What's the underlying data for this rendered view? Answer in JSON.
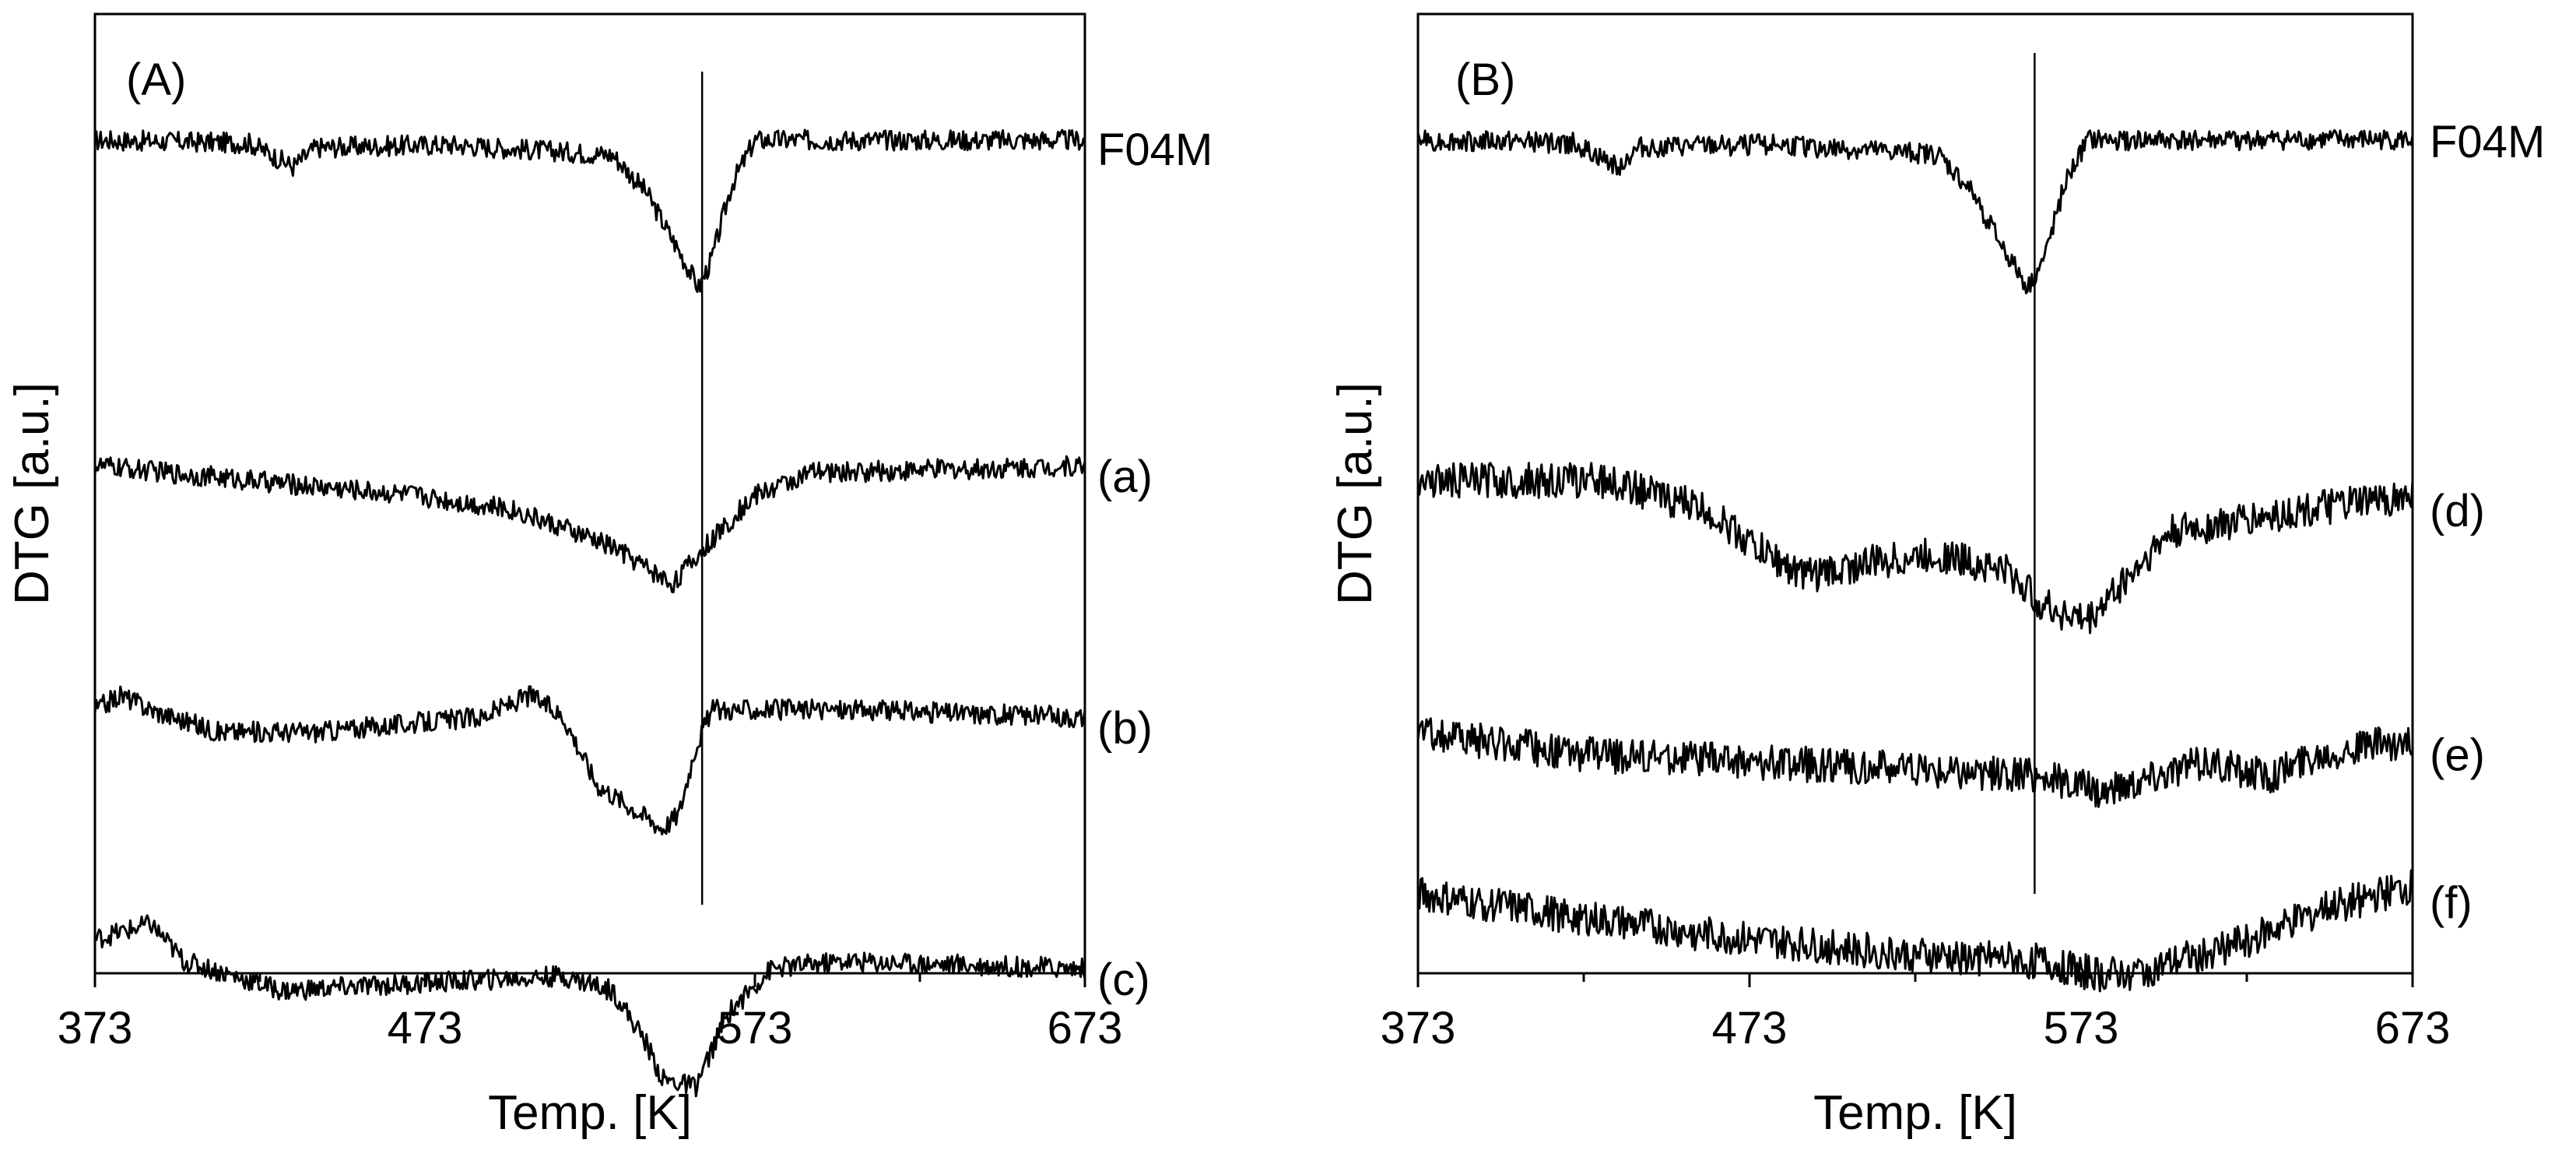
{
  "chart_data": [
    {
      "type": "line",
      "panel_label": "(A)",
      "xlabel": "Temp. [K]",
      "ylabel": "DTG [a.u.]",
      "xlim": [
        373,
        673
      ],
      "xticks": [
        373,
        473,
        573,
        673
      ],
      "y_ticks_shown": false,
      "reference_line_x": 557,
      "series": [
        {
          "name": "F04M",
          "offset": 0,
          "points": [
            [
              373,
              0
            ],
            [
              420,
              -0.02
            ],
            [
              433,
              -0.18
            ],
            [
              440,
              -0.05
            ],
            [
              480,
              -0.03
            ],
            [
              530,
              -0.1
            ],
            [
              540,
              -0.35
            ],
            [
              550,
              -0.75
            ],
            [
              556,
              -1.0
            ],
            [
              560,
              -0.8
            ],
            [
              566,
              -0.3
            ],
            [
              573,
              0
            ],
            [
              673,
              0
            ]
          ]
        },
        {
          "name": "(a)",
          "offset": -2.2,
          "points": [
            [
              373,
              0
            ],
            [
              420,
              -0.1
            ],
            [
              470,
              -0.2
            ],
            [
              500,
              -0.3
            ],
            [
              530,
              -0.55
            ],
            [
              548,
              -0.8
            ],
            [
              552,
              -0.7
            ],
            [
              560,
              -0.5
            ],
            [
              573,
              -0.2
            ],
            [
              590,
              -0.05
            ],
            [
              673,
              0
            ]
          ]
        },
        {
          "name": "(b)",
          "offset": -3.9,
          "points": [
            [
              373,
              0.05
            ],
            [
              381,
              0.15
            ],
            [
              390,
              0.05
            ],
            [
              410,
              -0.1
            ],
            [
              440,
              -0.1
            ],
            [
              490,
              0.0
            ],
            [
              505,
              0.15
            ],
            [
              515,
              0.0
            ],
            [
              525,
              -0.45
            ],
            [
              545,
              -0.75
            ],
            [
              550,
              -0.65
            ],
            [
              555,
              -0.2
            ],
            [
              560,
              0.05
            ],
            [
              600,
              0.05
            ],
            [
              673,
              0
            ]
          ]
        },
        {
          "name": "(c)",
          "offset": -5.6,
          "points": [
            [
              373,
              0.2
            ],
            [
              390,
              0.3
            ],
            [
              400,
              0.05
            ],
            [
              430,
              -0.15
            ],
            [
              470,
              -0.1
            ],
            [
              515,
              -0.05
            ],
            [
              530,
              -0.15
            ],
            [
              540,
              -0.5
            ],
            [
              545,
              -0.75
            ],
            [
              555,
              -0.8
            ],
            [
              565,
              -0.3
            ],
            [
              578,
              0.0
            ],
            [
              600,
              0.05
            ],
            [
              673,
              0.0
            ]
          ]
        }
      ]
    },
    {
      "type": "line",
      "panel_label": "(B)",
      "xlabel": "Temp. [K]",
      "ylabel": "DTG [a.u.]",
      "xlim": [
        373,
        673
      ],
      "xticks": [
        373,
        473,
        573,
        673
      ],
      "y_ticks_shown": false,
      "reference_line_x": 559,
      "series": [
        {
          "name": "F04M",
          "offset": 0,
          "points": [
            [
              373,
              0
            ],
            [
              420,
              -0.02
            ],
            [
              433,
              -0.18
            ],
            [
              440,
              -0.05
            ],
            [
              480,
              -0.03
            ],
            [
              530,
              -0.1
            ],
            [
              540,
              -0.35
            ],
            [
              550,
              -0.75
            ],
            [
              557,
              -1.0
            ],
            [
              562,
              -0.8
            ],
            [
              568,
              -0.3
            ],
            [
              575,
              0
            ],
            [
              673,
              0
            ]
          ]
        },
        {
          "name": "(d)",
          "offset": -2.3,
          "points": [
            [
              373,
              0
            ],
            [
              430,
              0
            ],
            [
              460,
              -0.2
            ],
            [
              475,
              -0.45
            ],
            [
              490,
              -0.65
            ],
            [
              510,
              -0.55
            ],
            [
              530,
              -0.5
            ],
            [
              550,
              -0.6
            ],
            [
              562,
              -0.85
            ],
            [
              575,
              -0.95
            ],
            [
              585,
              -0.7
            ],
            [
              600,
              -0.35
            ],
            [
              640,
              -0.2
            ],
            [
              673,
              -0.1
            ]
          ]
        },
        {
          "name": "(e)",
          "offset": -4.0,
          "points": [
            [
              373,
              0
            ],
            [
              420,
              -0.15
            ],
            [
              470,
              -0.2
            ],
            [
              520,
              -0.25
            ],
            [
              560,
              -0.3
            ],
            [
              580,
              -0.4
            ],
            [
              595,
              -0.3
            ],
            [
              610,
              -0.2
            ],
            [
              630,
              -0.3
            ],
            [
              645,
              -0.15
            ],
            [
              673,
              -0.05
            ]
          ]
        },
        {
          "name": "(f)",
          "offset": -5.1,
          "points": [
            [
              373,
              0
            ],
            [
              420,
              -0.15
            ],
            [
              470,
              -0.3
            ],
            [
              520,
              -0.4
            ],
            [
              560,
              -0.45
            ],
            [
              580,
              -0.55
            ],
            [
              595,
              -0.5
            ],
            [
              625,
              -0.3
            ],
            [
              645,
              -0.1
            ],
            [
              673,
              0.05
            ]
          ]
        }
      ]
    }
  ]
}
